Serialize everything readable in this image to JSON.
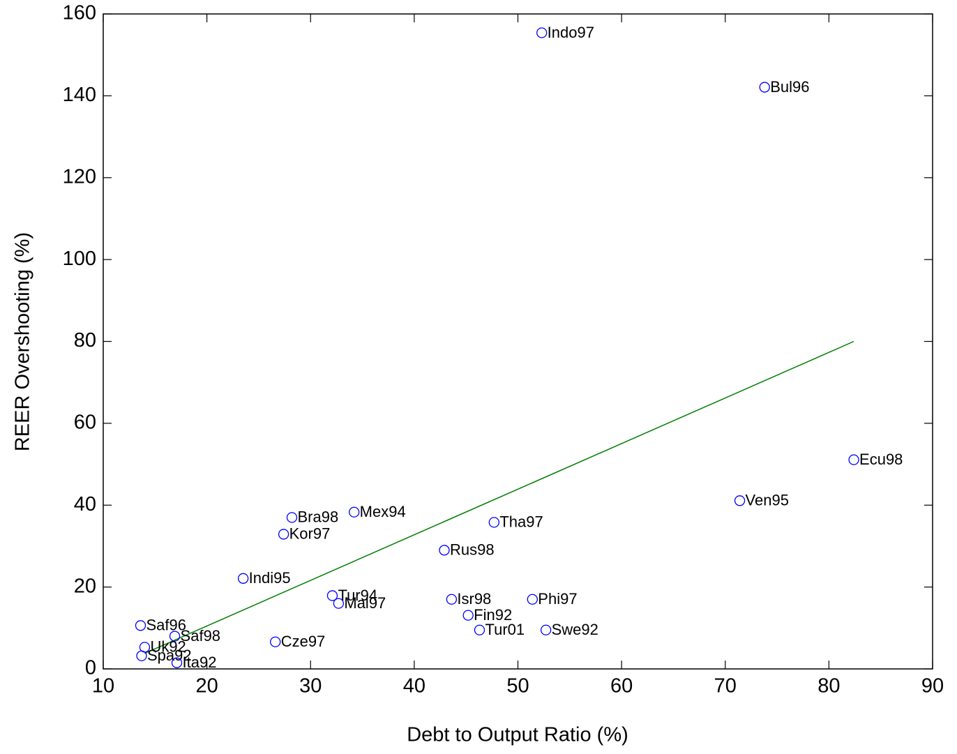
{
  "chart_data": {
    "type": "scatter",
    "xlabel": "Debt to Output Ratio (%)",
    "ylabel": "REER Overshooting (%)",
    "labels": [
      "Indo97",
      "Bul96",
      "Ecu98",
      "Ven95",
      "Tha97",
      "Rus98",
      "Mex94",
      "Bra98",
      "Kor97",
      "Indi95",
      "Tur94",
      "Mal97",
      "Isr98",
      "Phi97",
      "Fin92",
      "Tur01",
      "Swe92",
      "Cze97",
      "Saf96",
      "Saf98",
      "Uk92",
      "Spa92",
      "Ita92"
    ],
    "x": [
      52.3,
      73.8,
      82.4,
      71.4,
      47.7,
      42.9,
      34.2,
      28.2,
      27.4,
      23.5,
      32.1,
      32.7,
      43.6,
      51.4,
      45.2,
      46.3,
      52.7,
      26.6,
      13.6,
      16.9,
      14.0,
      13.7,
      17.1
    ],
    "values": [
      155.4,
      142.1,
      51.1,
      41.1,
      35.8,
      29.0,
      38.3,
      37.0,
      32.9,
      22.1,
      17.9,
      16.0,
      17.0,
      17.0,
      13.1,
      9.5,
      9.5,
      6.6,
      10.6,
      8.0,
      5.3,
      3.2,
      1.5
    ],
    "color": "#0000ff",
    "fit": {
      "x": [
        14.0,
        82.4
      ],
      "y": [
        3.8,
        80.0
      ],
      "color": "#007f00"
    },
    "xlim": [
      10,
      90
    ],
    "xticks": [
      10,
      20,
      30,
      40,
      50,
      60,
      70,
      80,
      90
    ],
    "ylim": [
      0,
      160
    ],
    "yticks": [
      0,
      20,
      40,
      60,
      80,
      100,
      120,
      140,
      160
    ],
    "grid": false
  }
}
